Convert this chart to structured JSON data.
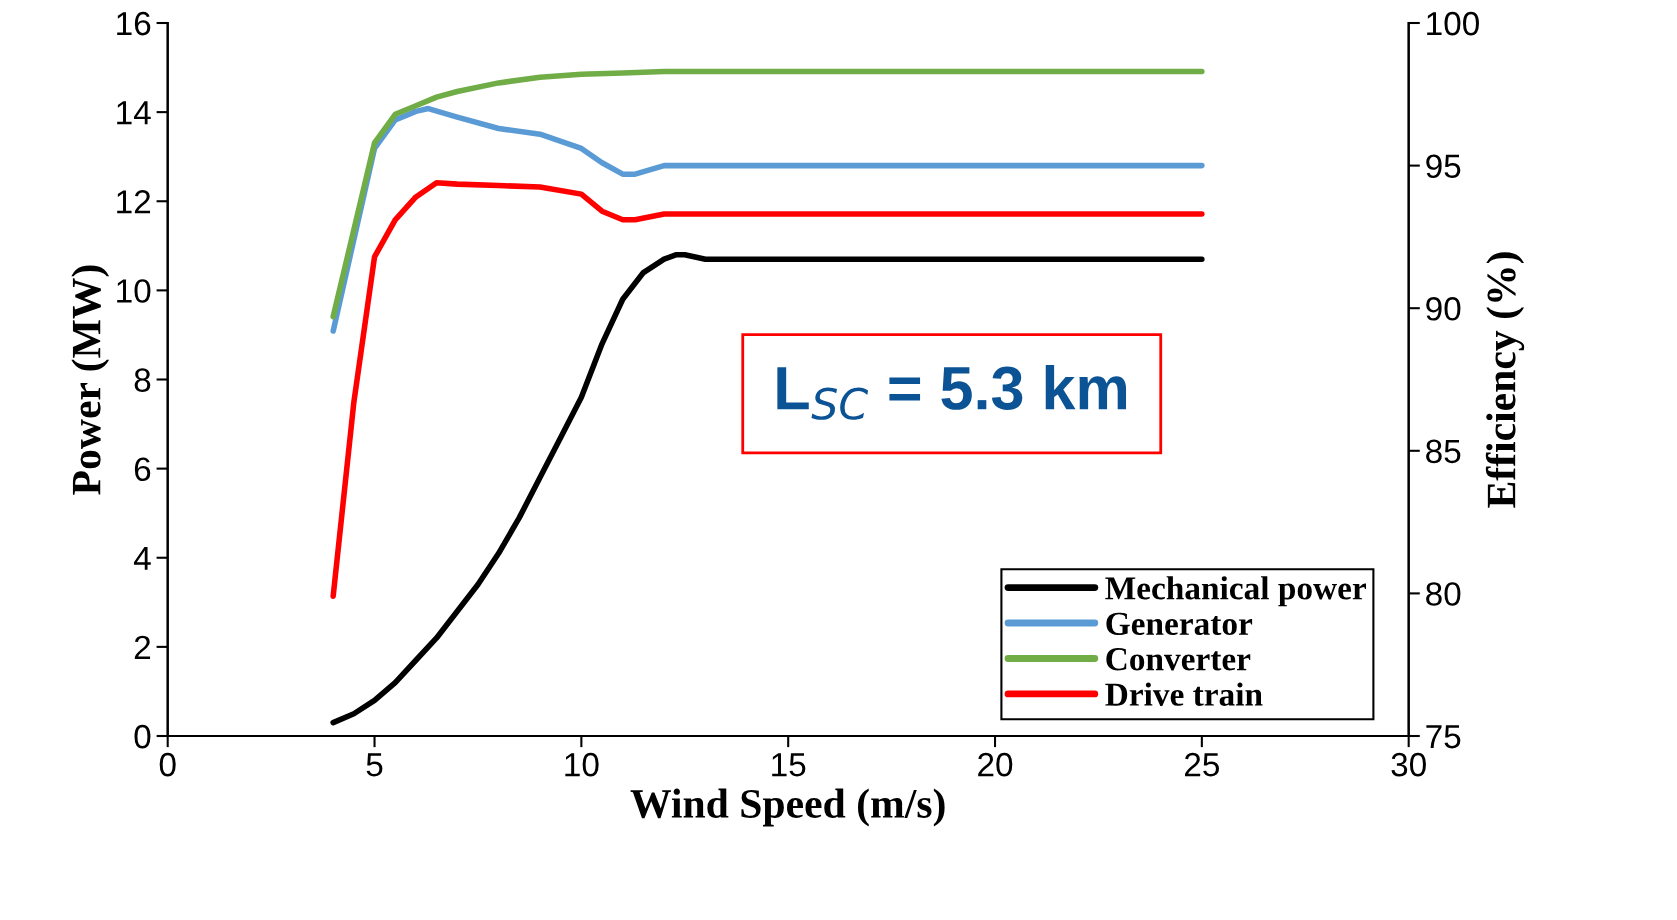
{
  "chart_data": {
    "type": "line",
    "xlabel": "Wind Speed (m/s)",
    "ylabel": "Power (MW)",
    "y2label": "Efficiency (%)",
    "xlim": [
      0,
      30
    ],
    "xticks": [
      0,
      5,
      10,
      15,
      20,
      25,
      30
    ],
    "ylim": [
      0,
      16
    ],
    "yticks": [
      0,
      2,
      4,
      6,
      8,
      10,
      12,
      14,
      16
    ],
    "y2lim": [
      75,
      100
    ],
    "y2ticks": [
      75,
      80,
      85,
      90,
      95,
      100
    ],
    "grid": false,
    "legend": "bottom right",
    "marker": "none",
    "line_style": "solid",
    "annotations": [
      "L$_{SC}$ = 5.3 km"
    ],
    "series": [
      {
        "name": "Mechanical power",
        "color": "#000000",
        "x": [
          4,
          4.5,
          5,
          5.5,
          6,
          6.5,
          7,
          7.5,
          8,
          8.5,
          9,
          9.5,
          10,
          10.5,
          11,
          11.5,
          12,
          12.3,
          12.5,
          13,
          25
        ],
        "values": [
          0.3,
          0.5,
          0.8,
          1.2,
          1.7,
          2.2,
          2.8,
          3.4,
          4.1,
          4.9,
          5.8,
          6.7,
          7.6,
          8.8,
          9.8,
          10.4,
          10.7,
          10.8,
          10.8,
          10.7,
          10.7
        ]
      },
      {
        "name": "Generator",
        "color": "#5b9bd5",
        "axis": "y2",
        "x": [
          4,
          5,
          5.5,
          6,
          6.3,
          7,
          8,
          9,
          10,
          10.5,
          11,
          11.3,
          12,
          12.5,
          25
        ],
        "values": [
          89.2,
          95.6,
          96.6,
          96.9,
          97.0,
          96.7,
          96.3,
          96.1,
          95.6,
          95.1,
          94.7,
          94.7,
          95.0,
          95.0,
          95.0
        ]
      },
      {
        "name": "Converter",
        "color": "#70ad47",
        "axis": "y2",
        "x": [
          4,
          5,
          5.5,
          6,
          6.5,
          7,
          8,
          9,
          10,
          11,
          12,
          25
        ],
        "values": [
          89.7,
          95.8,
          96.8,
          97.1,
          97.4,
          97.6,
          97.9,
          98.1,
          98.2,
          98.25,
          98.3,
          98.3
        ]
      },
      {
        "name": "Drive train",
        "color": "#ff0000",
        "axis": "y2",
        "x": [
          4,
          4.5,
          5,
          5.5,
          6,
          6.5,
          7,
          8,
          9,
          10,
          10.5,
          11,
          11.3,
          12,
          25
        ],
        "values": [
          79.9,
          86.7,
          91.8,
          93.1,
          93.9,
          94.4,
          94.35,
          94.3,
          94.25,
          94.0,
          93.4,
          93.1,
          93.1,
          93.3,
          93.3
        ]
      }
    ]
  }
}
